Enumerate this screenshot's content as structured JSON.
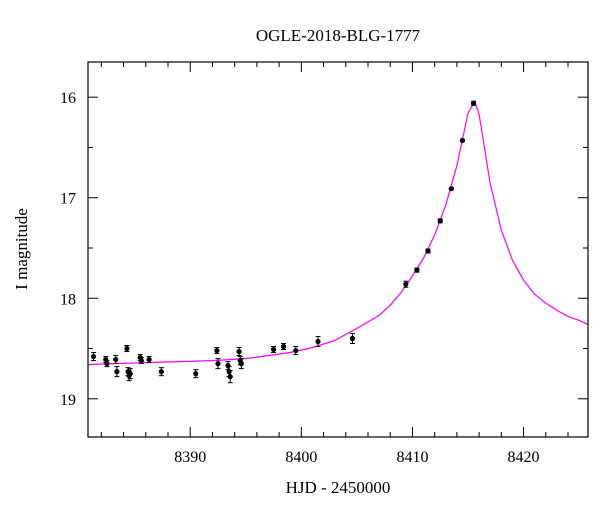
{
  "chart_data": {
    "type": "scatter",
    "title": "OGLE-2018-BLG-1777",
    "xlabel": "HJD - 2450000",
    "ylabel": "I magnitude",
    "xlim": [
      8380.8,
      8425.8
    ],
    "ylim": [
      19.38,
      15.65
    ],
    "y_inverted": true,
    "grid": false,
    "x_ticks": [
      8390,
      8400,
      8410,
      8420
    ],
    "y_ticks": [
      16,
      17,
      18,
      19
    ],
    "x_tick_labels": [
      "8390",
      "8400",
      "8410",
      "8420"
    ],
    "y_tick_labels": [
      "16",
      "17",
      "18",
      "19"
    ],
    "colors": {
      "model": "#ff00ff",
      "points": "#000000"
    },
    "series": [
      {
        "type": "scatter",
        "x": [
          8381.3,
          8382.4,
          8382.5,
          8383.3,
          8383.4,
          8384.3,
          8384.4,
          8384.5,
          8384.6,
          8385.5,
          8385.6,
          8386.3,
          8387.4,
          8390.5,
          8392.4,
          8392.5,
          8393.4,
          8393.5,
          8393.6,
          8394.4,
          8394.5,
          8394.6,
          8397.5,
          8398.4,
          8399.5,
          8401.5,
          8404.6,
          8409.4,
          8410.4,
          8411.4,
          8412.5,
          8413.5,
          8414.5,
          8415.5
        ],
        "y": [
          18.58,
          18.61,
          18.65,
          18.61,
          18.73,
          18.5,
          18.73,
          18.77,
          18.75,
          18.59,
          18.62,
          18.61,
          18.73,
          18.75,
          18.52,
          18.65,
          18.67,
          18.73,
          18.78,
          18.53,
          18.62,
          18.65,
          18.51,
          18.48,
          18.52,
          18.43,
          18.4,
          17.86,
          17.72,
          17.53,
          17.23,
          16.91,
          16.43,
          16.06
        ],
        "yerr": [
          0.04,
          0.03,
          0.03,
          0.04,
          0.05,
          0.03,
          0.04,
          0.05,
          0.05,
          0.03,
          0.03,
          0.03,
          0.04,
          0.04,
          0.03,
          0.05,
          0.04,
          0.05,
          0.06,
          0.04,
          0.04,
          0.05,
          0.03,
          0.03,
          0.04,
          0.05,
          0.05,
          0.03,
          0.02,
          0.02,
          0.02,
          0.01,
          0.01,
          0.02
        ]
      },
      {
        "type": "line",
        "x": [
          8380.8,
          8383,
          8386,
          8389,
          8392,
          8395,
          8397,
          8399,
          8401,
          8403,
          8405,
          8407,
          8408,
          8409,
          8410,
          8411,
          8412,
          8413,
          8414,
          8415,
          8415.6,
          8416,
          8417,
          8418,
          8419,
          8420,
          8421,
          8422,
          8423,
          8424,
          8425,
          8425.8
        ],
        "y": [
          18.66,
          18.65,
          18.64,
          18.63,
          18.62,
          18.6,
          18.57,
          18.54,
          18.49,
          18.42,
          18.3,
          18.17,
          18.07,
          17.94,
          17.78,
          17.6,
          17.37,
          17.07,
          16.68,
          16.16,
          16.04,
          16.17,
          16.86,
          17.32,
          17.62,
          17.82,
          17.96,
          18.05,
          18.12,
          18.18,
          18.22,
          18.26
        ]
      }
    ]
  }
}
